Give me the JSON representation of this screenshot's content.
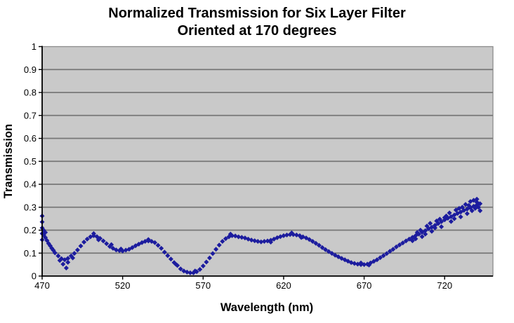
{
  "chart_data": {
    "type": "scatter",
    "title": "Normalized Transmission for Six Layer Filter Oriented at 170 degrees",
    "title_line1": "Normalized Transmission for Six Layer Filter",
    "title_line2": "Oriented at 170 degrees",
    "xlabel": "Wavelength (nm)",
    "ylabel": "Transmission",
    "xlim": [
      470,
      750
    ],
    "ylim": [
      0,
      1
    ],
    "x_ticks": [
      470,
      520,
      570,
      620,
      670,
      720
    ],
    "y_ticks": [
      0,
      0.1,
      0.2,
      0.3,
      0.4,
      0.5,
      0.6,
      0.7,
      0.8,
      0.9,
      1
    ],
    "y_tick_labels": [
      "0",
      "0.1",
      "0.2",
      "0.3",
      "0.4",
      "0.5",
      "0.6",
      "0.7",
      "0.8",
      "0.9",
      "1"
    ],
    "grid": "horizontal",
    "legend": "none",
    "marker": "diamond",
    "marker_size": 7,
    "colors": {
      "marker": "#1C1C9E",
      "plot_bg": "#C9C9C9",
      "grid": "#777777",
      "border": "#8C8C8C",
      "axis": "#000000",
      "page_bg": "#FFFFFF",
      "text": "#000000"
    },
    "series": [
      {
        "name": "transmission",
        "points": [
          [
            470,
            0.185
          ],
          [
            472,
            0.168
          ],
          [
            474,
            0.142
          ],
          [
            476,
            0.121
          ],
          [
            478,
            0.101
          ],
          [
            480,
            0.088
          ],
          [
            482,
            0.076
          ],
          [
            484,
            0.071
          ],
          [
            486,
            0.077
          ],
          [
            488,
            0.088
          ],
          [
            490,
            0.099
          ],
          [
            492,
            0.114
          ],
          [
            494,
            0.131
          ],
          [
            496,
            0.148
          ],
          [
            498,
            0.161
          ],
          [
            500,
            0.171
          ],
          [
            502,
            0.176
          ],
          [
            504,
            0.172
          ],
          [
            506,
            0.164
          ],
          [
            508,
            0.153
          ],
          [
            510,
            0.141
          ],
          [
            512,
            0.129
          ],
          [
            514,
            0.121
          ],
          [
            516,
            0.114
          ],
          [
            518,
            0.111
          ],
          [
            520,
            0.109
          ],
          [
            522,
            0.113
          ],
          [
            524,
            0.117
          ],
          [
            526,
            0.124
          ],
          [
            528,
            0.132
          ],
          [
            530,
            0.139
          ],
          [
            532,
            0.146
          ],
          [
            534,
            0.151
          ],
          [
            536,
            0.153
          ],
          [
            538,
            0.151
          ],
          [
            540,
            0.146
          ],
          [
            542,
            0.134
          ],
          [
            544,
            0.121
          ],
          [
            546,
            0.104
          ],
          [
            548,
            0.089
          ],
          [
            550,
            0.074
          ],
          [
            552,
            0.059
          ],
          [
            554,
            0.046
          ],
          [
            556,
            0.031
          ],
          [
            558,
            0.022
          ],
          [
            560,
            0.017
          ],
          [
            562,
            0.014
          ],
          [
            564,
            0.014
          ],
          [
            566,
            0.019
          ],
          [
            568,
            0.029
          ],
          [
            570,
            0.044
          ],
          [
            572,
            0.061
          ],
          [
            574,
            0.079
          ],
          [
            576,
            0.098
          ],
          [
            578,
            0.117
          ],
          [
            580,
            0.135
          ],
          [
            582,
            0.151
          ],
          [
            584,
            0.163
          ],
          [
            586,
            0.171
          ],
          [
            588,
            0.176
          ],
          [
            590,
            0.175
          ],
          [
            592,
            0.171
          ],
          [
            594,
            0.169
          ],
          [
            596,
            0.166
          ],
          [
            598,
            0.161
          ],
          [
            600,
            0.157
          ],
          [
            602,
            0.154
          ],
          [
            604,
            0.151
          ],
          [
            606,
            0.149
          ],
          [
            608,
            0.151
          ],
          [
            610,
            0.153
          ],
          [
            612,
            0.156
          ],
          [
            614,
            0.161
          ],
          [
            616,
            0.167
          ],
          [
            618,
            0.172
          ],
          [
            620,
            0.176
          ],
          [
            622,
            0.179
          ],
          [
            624,
            0.181
          ],
          [
            626,
            0.181
          ],
          [
            628,
            0.179
          ],
          [
            630,
            0.176
          ],
          [
            632,
            0.171
          ],
          [
            634,
            0.166
          ],
          [
            636,
            0.159
          ],
          [
            638,
            0.151
          ],
          [
            640,
            0.143
          ],
          [
            642,
            0.134
          ],
          [
            644,
            0.124
          ],
          [
            646,
            0.115
          ],
          [
            648,
            0.107
          ],
          [
            650,
            0.099
          ],
          [
            652,
            0.091
          ],
          [
            654,
            0.084
          ],
          [
            656,
            0.077
          ],
          [
            658,
            0.071
          ],
          [
            660,
            0.065
          ],
          [
            662,
            0.059
          ],
          [
            664,
            0.055
          ],
          [
            666,
            0.052
          ],
          [
            668,
            0.05
          ],
          [
            670,
            0.05
          ],
          [
            672,
            0.052
          ],
          [
            674,
            0.057
          ],
          [
            676,
            0.064
          ],
          [
            678,
            0.071
          ],
          [
            680,
            0.08
          ],
          [
            682,
            0.089
          ],
          [
            684,
            0.098
          ],
          [
            686,
            0.108
          ],
          [
            688,
            0.117
          ],
          [
            690,
            0.127
          ],
          [
            692,
            0.136
          ],
          [
            694,
            0.144
          ],
          [
            696,
            0.153
          ],
          [
            698,
            0.161
          ],
          [
            700,
            0.169
          ],
          [
            702,
            0.176
          ],
          [
            704,
            0.183
          ],
          [
            706,
            0.191
          ],
          [
            708,
            0.198
          ],
          [
            710,
            0.206
          ],
          [
            712,
            0.213
          ],
          [
            714,
            0.221
          ],
          [
            716,
            0.229
          ],
          [
            718,
            0.237
          ],
          [
            720,
            0.245
          ],
          [
            722,
            0.252
          ],
          [
            724,
            0.259
          ],
          [
            726,
            0.266
          ],
          [
            728,
            0.273
          ],
          [
            730,
            0.279
          ],
          [
            732,
            0.286
          ],
          [
            734,
            0.292
          ],
          [
            736,
            0.298
          ],
          [
            738,
            0.304
          ],
          [
            740,
            0.31
          ],
          [
            742,
            0.315
          ],
          [
            470,
            0.262
          ],
          [
            470,
            0.236
          ],
          [
            470,
            0.21
          ],
          [
            471,
            0.199
          ],
          [
            470,
            0.158
          ],
          [
            471,
            0.178
          ],
          [
            472,
            0.19
          ],
          [
            473,
            0.155
          ],
          [
            475,
            0.132
          ],
          [
            477,
            0.112
          ],
          [
            481,
            0.068
          ],
          [
            483,
            0.052
          ],
          [
            485,
            0.035
          ],
          [
            486,
            0.06
          ],
          [
            489,
            0.079
          ],
          [
            502,
            0.185
          ],
          [
            505,
            0.158
          ],
          [
            513,
            0.137
          ],
          [
            519,
            0.118
          ],
          [
            536,
            0.159
          ],
          [
            553,
            0.052
          ],
          [
            565,
            0.022
          ],
          [
            587,
            0.183
          ],
          [
            612,
            0.148
          ],
          [
            625,
            0.188
          ],
          [
            631,
            0.168
          ],
          [
            668,
            0.057
          ],
          [
            673,
            0.048
          ],
          [
            700,
            0.154
          ],
          [
            702,
            0.162
          ],
          [
            703,
            0.19
          ],
          [
            705,
            0.2
          ],
          [
            706,
            0.172
          ],
          [
            708,
            0.183
          ],
          [
            709,
            0.218
          ],
          [
            711,
            0.23
          ],
          [
            712,
            0.195
          ],
          [
            714,
            0.21
          ],
          [
            715,
            0.24
          ],
          [
            717,
            0.248
          ],
          [
            718,
            0.215
          ],
          [
            720,
            0.255
          ],
          [
            721,
            0.262
          ],
          [
            723,
            0.275
          ],
          [
            724,
            0.238
          ],
          [
            726,
            0.25
          ],
          [
            727,
            0.288
          ],
          [
            729,
            0.295
          ],
          [
            730,
            0.258
          ],
          [
            731,
            0.3
          ],
          [
            733,
            0.312
          ],
          [
            734,
            0.272
          ],
          [
            735,
            0.308
          ],
          [
            736,
            0.325
          ],
          [
            737,
            0.285
          ],
          [
            738,
            0.33
          ],
          [
            739,
            0.295
          ],
          [
            740,
            0.335
          ],
          [
            741,
            0.3
          ],
          [
            742,
            0.285
          ],
          [
            740,
            0.322
          ]
        ]
      }
    ]
  }
}
